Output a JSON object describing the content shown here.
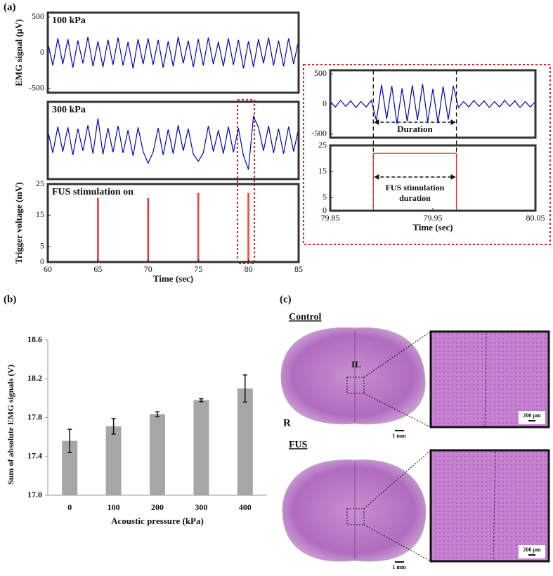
{
  "panels": [
    "(a)",
    "(b)",
    "(c)"
  ],
  "chart_data": [
    {
      "type": "line",
      "label": "100 kPa",
      "y_label": "EMG signal (μV)",
      "color": "#0000cc",
      "xlim": [
        60,
        85
      ],
      "ylim": [
        -560,
        560
      ],
      "yticks": [
        -500,
        0,
        500
      ],
      "x": [
        60,
        60.5,
        61,
        61.5,
        62,
        62.5,
        63,
        63.5,
        64,
        64.5,
        65,
        65.5,
        66,
        66.5,
        67,
        67.5,
        68,
        68.5,
        69,
        69.5,
        70,
        70.5,
        71,
        71.5,
        72,
        72.5,
        73,
        73.5,
        74,
        74.5,
        75,
        75.5,
        76,
        76.5,
        77,
        77.5,
        78,
        78.5,
        79,
        79.5,
        80,
        80.5,
        81,
        81.5,
        82,
        82.5,
        83,
        83.5,
        84,
        84.5,
        85
      ],
      "values": [
        150,
        -180,
        200,
        -160,
        190,
        -210,
        170,
        -150,
        220,
        -190,
        160,
        -200,
        180,
        -170,
        210,
        -180,
        150,
        -220,
        190,
        -160,
        200,
        -170,
        180,
        -210,
        160,
        -190,
        220,
        -150,
        170,
        -200,
        190,
        -180,
        210,
        -160,
        150,
        -190,
        200,
        -170,
        180,
        -220,
        160,
        -200,
        190,
        -150,
        210,
        -180,
        170,
        -190,
        200,
        -160,
        180
      ]
    },
    {
      "type": "line",
      "label": "300 kPa",
      "color": "#0000cc",
      "xlim": [
        60,
        85
      ],
      "ylim": [
        -560,
        560
      ],
      "x": [
        60,
        60.5,
        61,
        61.5,
        62,
        62.5,
        63,
        63.5,
        64,
        64.5,
        65,
        65.5,
        66,
        66.5,
        67,
        67.5,
        68,
        68.5,
        69,
        69.5,
        70,
        70.5,
        71,
        71.5,
        72,
        72.5,
        73,
        73.5,
        74,
        74.5,
        75,
        75.5,
        76,
        76.5,
        77,
        77.5,
        78,
        78.5,
        79,
        79.5,
        80,
        80.5,
        81,
        81.5,
        82,
        82.5,
        83,
        83.5,
        84,
        84.5,
        85
      ],
      "values": [
        150,
        -180,
        200,
        -160,
        190,
        -210,
        170,
        -150,
        220,
        -190,
        320,
        -200,
        180,
        -170,
        210,
        -180,
        150,
        -220,
        190,
        -160,
        -330,
        -170,
        180,
        -210,
        160,
        -190,
        220,
        -150,
        170,
        -200,
        -300,
        -180,
        210,
        -160,
        150,
        -190,
        200,
        -170,
        180,
        -220,
        -420,
        350,
        190,
        -150,
        210,
        -180,
        170,
        -190,
        200,
        -160,
        180
      ]
    },
    {
      "type": "line",
      "label": "FUS stimulation on",
      "y_label": "Trigger voltage (mV)",
      "x_label": "Time (sec)",
      "color": "#e03030",
      "xlim": [
        60,
        85
      ],
      "ylim": [
        0,
        25
      ],
      "yticks": [
        0,
        5,
        15,
        25
      ],
      "xticks": [
        60,
        65,
        70,
        75,
        80,
        85
      ],
      "x": [
        60,
        64.95,
        64.95,
        65.05,
        65.05,
        69.95,
        69.95,
        70.05,
        70.05,
        74.95,
        74.95,
        75.05,
        75.05,
        79.95,
        79.95,
        80.05,
        80.05,
        85
      ],
      "values": [
        0,
        0,
        22,
        22,
        0,
        0,
        22,
        22,
        0,
        0,
        22,
        22,
        0,
        0,
        22,
        22,
        0,
        0
      ]
    },
    {
      "type": "line",
      "label": "Duration",
      "color": "#0000cc",
      "xlim": [
        79.85,
        80.05
      ],
      "ylim": [
        -560,
        560
      ],
      "yticks": [
        -500,
        0,
        500
      ],
      "span": [
        79.892,
        79.973
      ],
      "x": [
        79.85,
        79.855,
        79.86,
        79.865,
        79.87,
        79.875,
        79.88,
        79.885,
        79.89,
        79.895,
        79.9,
        79.905,
        79.91,
        79.915,
        79.92,
        79.925,
        79.93,
        79.935,
        79.94,
        79.945,
        79.95,
        79.955,
        79.96,
        79.965,
        79.97,
        79.975,
        79.98,
        79.985,
        79.99,
        79.995,
        80,
        80.005,
        80.01,
        80.015,
        80.02,
        80.025,
        80.03,
        80.035,
        80.04,
        80.045,
        80.05
      ],
      "values": [
        40,
        -50,
        60,
        -40,
        50,
        -60,
        40,
        -50,
        60,
        -280,
        320,
        -250,
        300,
        -330,
        260,
        -290,
        310,
        -270,
        330,
        -300,
        250,
        -320,
        290,
        -260,
        300,
        -60,
        40,
        -50,
        60,
        -40,
        50,
        -60,
        40,
        -50,
        60,
        -40,
        50,
        -60,
        40,
        -50,
        40
      ]
    },
    {
      "type": "line",
      "label": "FUS stimulation duration",
      "x_label": "Time (sec)",
      "color": "#e03030",
      "xlim": [
        79.85,
        80.05
      ],
      "ylim": [
        0,
        25
      ],
      "yticks": [
        0,
        5,
        15,
        25
      ],
      "xticks": [
        79.85,
        79.95,
        80.05
      ],
      "span": [
        79.892,
        79.973
      ],
      "x": [
        79.85,
        79.892,
        79.892,
        79.973,
        79.973,
        80.05
      ],
      "values": [
        0,
        0,
        22,
        22,
        0,
        0
      ]
    },
    {
      "type": "bar",
      "x_label": "Acoustic pressure (kPa)",
      "y_label": "Sum of absolute EMG signals (V)",
      "color": "#a6a6a6",
      "categories": [
        "0",
        "100",
        "200",
        "300",
        "400"
      ],
      "values": [
        17.56,
        17.71,
        17.835,
        17.98,
        18.1
      ],
      "errors": [
        0.12,
        0.08,
        0.025,
        0.015,
        0.14
      ],
      "ylim": [
        17,
        18.6
      ],
      "yticks": [
        {
          "value": 17,
          "label": "17.0"
        },
        17.4,
        17.8,
        18.2,
        18.6
      ]
    }
  ],
  "histology": {
    "control": "Control",
    "fus": "FUS",
    "region": "IL",
    "side": "R",
    "scale_small": "1 mm",
    "scale_large": "200 μm"
  }
}
